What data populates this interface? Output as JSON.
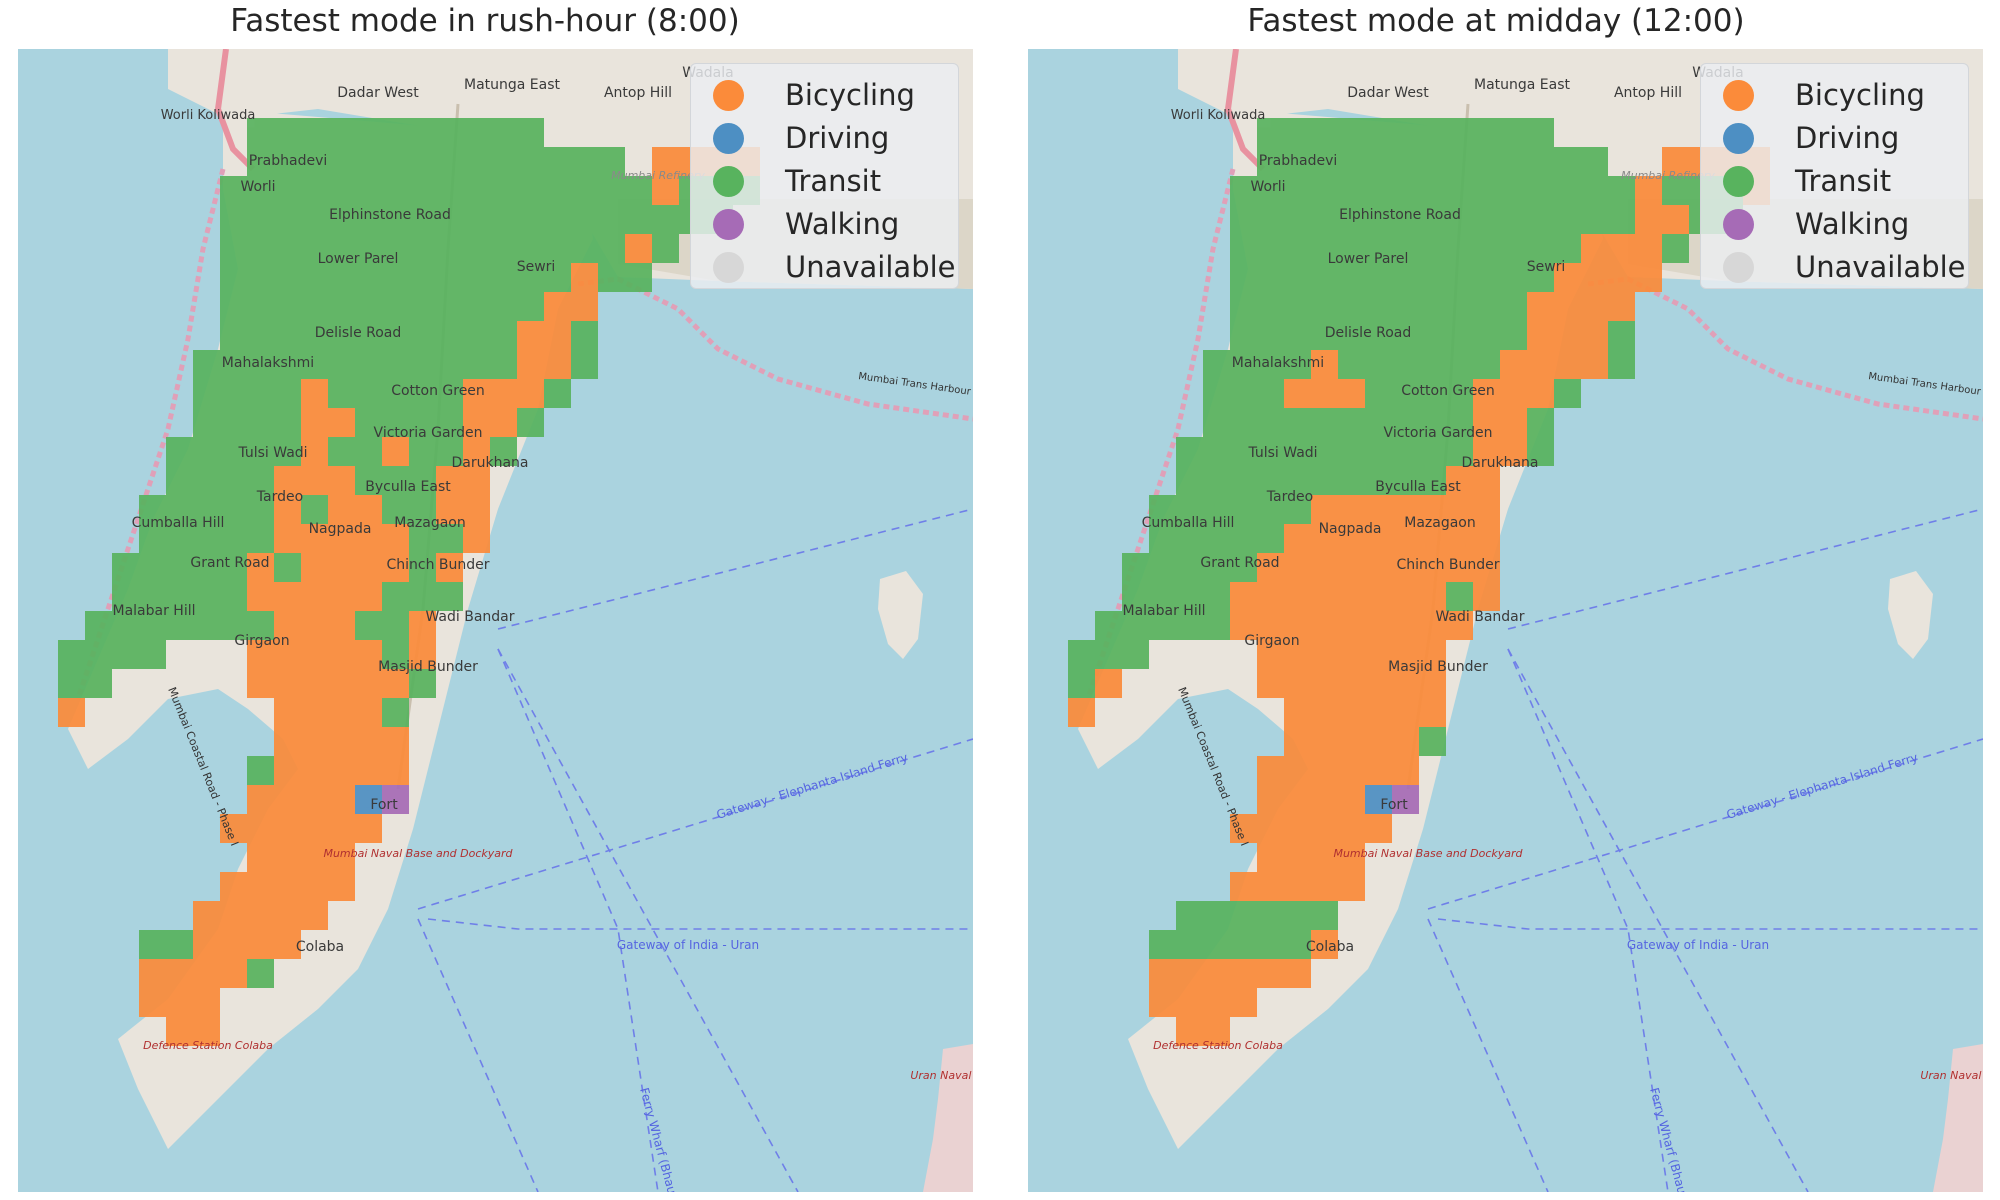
{
  "colors": {
    "water": "#aad3df",
    "land": "#e9e4dc",
    "bicycling": "#fb8b3a",
    "driving": "#4d8fc3",
    "transit": "#58b35e",
    "walking": "#a66bb6",
    "unavailable": "#d7d7d7",
    "ferry_route": "#6f7fe8",
    "maritime_boundary": "#e0a0b8"
  },
  "legend": {
    "items": [
      {
        "label": "Bicycling",
        "color": "#fb8b3a"
      },
      {
        "label": "Driving",
        "color": "#4d8fc3"
      },
      {
        "label": "Transit",
        "color": "#58b35e"
      },
      {
        "label": "Walking",
        "color": "#a66bb6"
      },
      {
        "label": "Unavailable",
        "color": "#d7d7d7"
      }
    ]
  },
  "map_labels": {
    "worli_koliwada": "Worli Koliwada",
    "dadar_west": "Dadar West",
    "matunga_east": "Matunga East",
    "antop_hill": "Antop Hill",
    "wadala": "Wadala",
    "prabhadevi": "Prabhadevi",
    "worli": "Worli",
    "elphinstone_road": "Elphinstone Road",
    "lower_parel": "Lower Parel",
    "sewri": "Sewri",
    "delisle_road": "Delisle Road",
    "mahalakshmi": "Mahalakshmi",
    "cotton_green": "Cotton Green",
    "victoria_garden": "Victoria Garden",
    "tulsi_wadi": "Tulsi Wadi",
    "darukhana": "Darukhana",
    "tardeo": "Tardeo",
    "byculla_east": "Byculla East",
    "cumballa_hill": "Cumballa Hill",
    "nagpada": "Nagpada",
    "mazagaon": "Mazagaon",
    "grant_road": "Grant Road",
    "chinch_bunder": "Chinch Bunder",
    "malabar_hill": "Malabar Hill",
    "wadi_bandar": "Wadi Bandar",
    "girgaon": "Girgaon",
    "masjid_bunder": "Masjid Bunder",
    "fort": "Fort",
    "naval_base": "Mumbai Naval Base and Dockyard",
    "colaba": "Colaba",
    "defence_station": "Defence Station Colaba",
    "mumbai_refinery": "Mumbai Refinery",
    "trans_harbour": "Mumbai Trans Harbour Link",
    "elephanta_ferry": "Gateway - Elephanta Island Ferry",
    "gateway_uran": "Gateway of India - Uran",
    "ferry_wharf": "Ferry Wharf (Bhau",
    "coastal_road": "Mumbai Coastal Road - Phase I",
    "uran": "Uran Naval Base"
  },
  "panels": [
    {
      "title": "Fastest mode in rush-hour (8:00)",
      "time": "8:00",
      "grid": [
        "..........................",
        ".......TTTTTTTTTTT........",
        ".......TTTTTTTTTTTTTT.BBBB",
        "......TTTTTTTTTTTTTTTTBTTT",
        "......TTTTTTTTTTTTTTTTTTT.",
        "......TTTTTTTTTTTTTTTBT...",
        "......TTTTTTTTTTTTTBTT....",
        "......TTTTTTTTTTTTBB......",
        "......TTTTTTTTTTTBBT......",
        ".....TTTTTTTTTTTTBBT......",
        ".....TTTTBTTTTTBBBT.......",
        ".....TTTTBBTTTTBBT........",
        "....TTTTTBTTBTTBT.........",
        "....TTTTBBBTTTBB..........",
        "...TTTTTBTBBTTBB..........",
        "...TTTTTBBBBBTTB..........",
        "..TTTTTBTBBBBTB...........",
        "..TTTTTBBBBBTTT...........",
        ".TTTTTTTBBBTTB............",
        "TTTT...BBBBBTB............",
        "TT.....BBBBBBT............",
        "B.......BBBBT.............",
        "........BBBBB.............",
        ".......TBBBBB.............",
        ".......BBBBPW.............",
        "......BBBBBB..............",
        ".......BBBB...............",
        "......BBBBB...............",
        ".....BBBBB................",
        "...TTBBBB.................",
        "...BBBBT..................",
        "...BBB....................",
        "....BB....................",
        ".........................."
      ]
    },
    {
      "title": "Fastest mode at midday (12:00)",
      "time": "12:00",
      "grid": [
        "..........................",
        ".......TTTTTTTTTTT........",
        ".......TTTTTTTTTTTTT..BBBB",
        "......TTTTTTTTTTTTTTTBTTTB",
        "......TTTTTTTTTTTTTTTBBTT.",
        "......TTTTTTTTTTTTTBBBT...",
        "......TTTTTTTTTTTTBBBB....",
        "......TTTTTTTTTTTBBBB.....",
        "......TTTTTTTTTTTBBBT.....",
        ".....TTTTBTTTTTTBBBBT.....",
        ".....TTTBBBTTTTBBBT.......",
        ".....TTTTTTTTTTBBT........",
        "....TTTTTTTTTTTBBT........",
        "....TTTTTTTTTTBB..........",
        "...TTTTTTBBBBBBB..........",
        "...TTTTTBBBBBBBB..........",
        "..TTTTTBBBBBBBBB..........",
        "..TTTTBBBBBBBBTB..........",
        ".TTTTTBBBBBBBBB...........",
        "TTT....BBBBBBB............",
        "TB.....BBBBBBB............",
        "B.......BBBBBB............",
        "........BBBBBT............",
        ".......BBBBBB.............",
        ".......BBBBPW.............",
        "......BBBBBB..............",
        ".......BBBB...............",
        "......BBBBB...............",
        "....TTTTTT................",
        "...TTTTTTB................",
        "...BBBBBB.................",
        "...BBBB...................",
        "....BB....................",
        ".........................."
      ]
    }
  ]
}
